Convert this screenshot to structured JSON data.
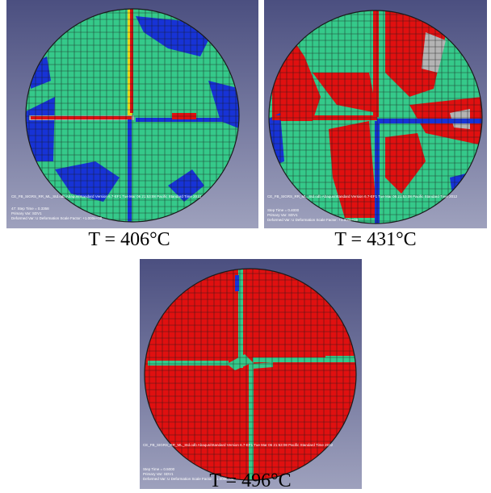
{
  "figure": {
    "panels": [
      {
        "caption": "T = 406°C",
        "fem_dominant_color": "#35c98a",
        "viewport_text": {
          "top_line": "CE_FB_SIGRS_RR_ML_Std.odb   Abaqus/Standard Version 6.7-EF1   Tue Mar 06 21:53:08 Pacific Standard Time 2012",
          "step_line": "Step: Step-1",
          "time_line": "47: Step Time =   0.3358",
          "var_line": "Primary Var: SDV1",
          "scale_line": "Deformed Var: U   Deformation Scale Factor: +1.000e+00"
        }
      },
      {
        "caption": "T = 431°C",
        "fem_dominant_color": "#35c98a",
        "viewport_text": {
          "top_line": "CE_FB_SIGRS_RR_ML_Std.odb   Abaqus/Standard Version 6.7-EF1   Tue Mar 06 21:53:08 Pacific Standard Time 2012",
          "step_line": "Step: Step-1",
          "time_line": "Step Time =   0.4000",
          "var_line": "Primary Var: SDV1",
          "scale_line": "Deformed Var: U   Deformation Scale Factor: +1.000e+00"
        }
      },
      {
        "caption": "T = 496°C",
        "fem_dominant_color": "#e01010",
        "viewport_text": {
          "top_line": "CE_FB_SIGRS_RR_ML_Std.odb   Abaqus/Standard Version 6.7-EF1   Tue Mar 06 21:53:08 Pacific Standard Time 2012",
          "step_line": "Step: Step-1",
          "time_line": "Step Time =   0.5000",
          "var_line": "Primary Var: SDV1",
          "scale_line": "Deformed Var: U   Deformation Scale Factor: +1.000e+00"
        }
      }
    ],
    "colors": {
      "background_top": "#4b4f80",
      "background_bottom": "#9ea1bd",
      "mesh_green": "#35c98a",
      "mesh_red": "#e01010",
      "mesh_blue": "#1733d6",
      "mesh_gray": "#b4b4b4",
      "mesh_yellow": "#e7d61a",
      "mesh_line": "#1a1a1a",
      "caption_text": "#000000"
    }
  }
}
